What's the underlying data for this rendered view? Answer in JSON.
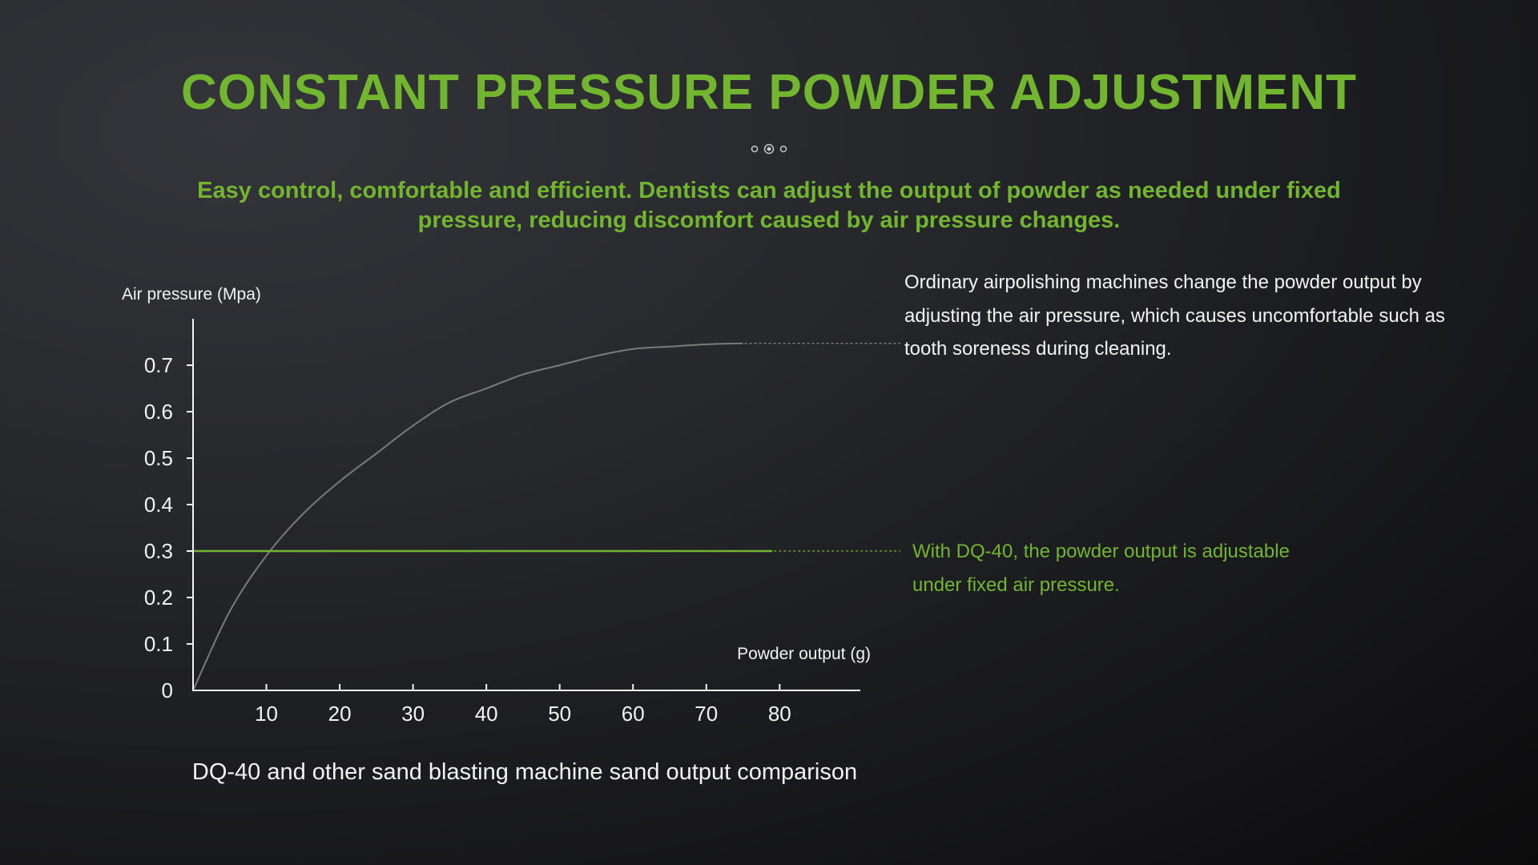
{
  "title": "CONSTANT PRESSURE POWDER ADJUSTMENT",
  "subtitle_line1": "Easy control, comfortable and efficient. Dentists can adjust the output of powder as needed under fixed",
  "subtitle_line2": "pressure, reducing discomfort caused by air pressure changes.",
  "notes": {
    "ordinary_line1": "Ordinary airpolishing machines change the powder output by",
    "ordinary_line2": "adjusting the air pressure, which causes uncomfortable such as",
    "ordinary_line3": "tooth soreness during cleaning.",
    "dq40_line1": "With DQ-40, the powder output is adjustable",
    "dq40_line2": "under fixed air pressure."
  },
  "caption": "DQ-40 and other sand blasting machine sand output comparison",
  "colors": {
    "accent": "#72b52e",
    "text": "#f2f2f2",
    "curve": "#7a7a7a",
    "background": "#1c1c1f"
  },
  "chart_data": {
    "type": "line",
    "xlabel": "Powder output (g)",
    "ylabel": "Air pressure (Mpa)",
    "xlim": [
      0,
      91
    ],
    "ylim": [
      0,
      0.8
    ],
    "x_ticks": [
      10,
      20,
      30,
      40,
      50,
      60,
      70,
      80
    ],
    "y_ticks": [
      0,
      0.1,
      0.2,
      0.3,
      0.4,
      0.5,
      0.6,
      0.7
    ],
    "y_tick_labels": [
      "0",
      "0.1",
      "0.2",
      "0.3",
      "0.4",
      "0.5",
      "0.6",
      "0.7"
    ],
    "series": [
      {
        "color": "#7a7a7a",
        "x": [
          0,
          5,
          10,
          15,
          20,
          25,
          30,
          35,
          40,
          45,
          50,
          55,
          60,
          65,
          70,
          75
        ],
        "y": [
          0,
          0.17,
          0.29,
          0.38,
          0.45,
          0.51,
          0.57,
          0.62,
          0.65,
          0.68,
          0.7,
          0.72,
          0.735,
          0.74,
          0.745,
          0.747
        ]
      },
      {
        "color": "#72b52e",
        "x": [
          0,
          79
        ],
        "y": [
          0.3,
          0.3
        ]
      }
    ],
    "annotations": [
      {
        "series": 0,
        "text_key": "notes.ordinary",
        "color": "#7a7a7a"
      },
      {
        "series": 1,
        "text_key": "notes.dq40",
        "color": "#72b52e"
      }
    ]
  }
}
